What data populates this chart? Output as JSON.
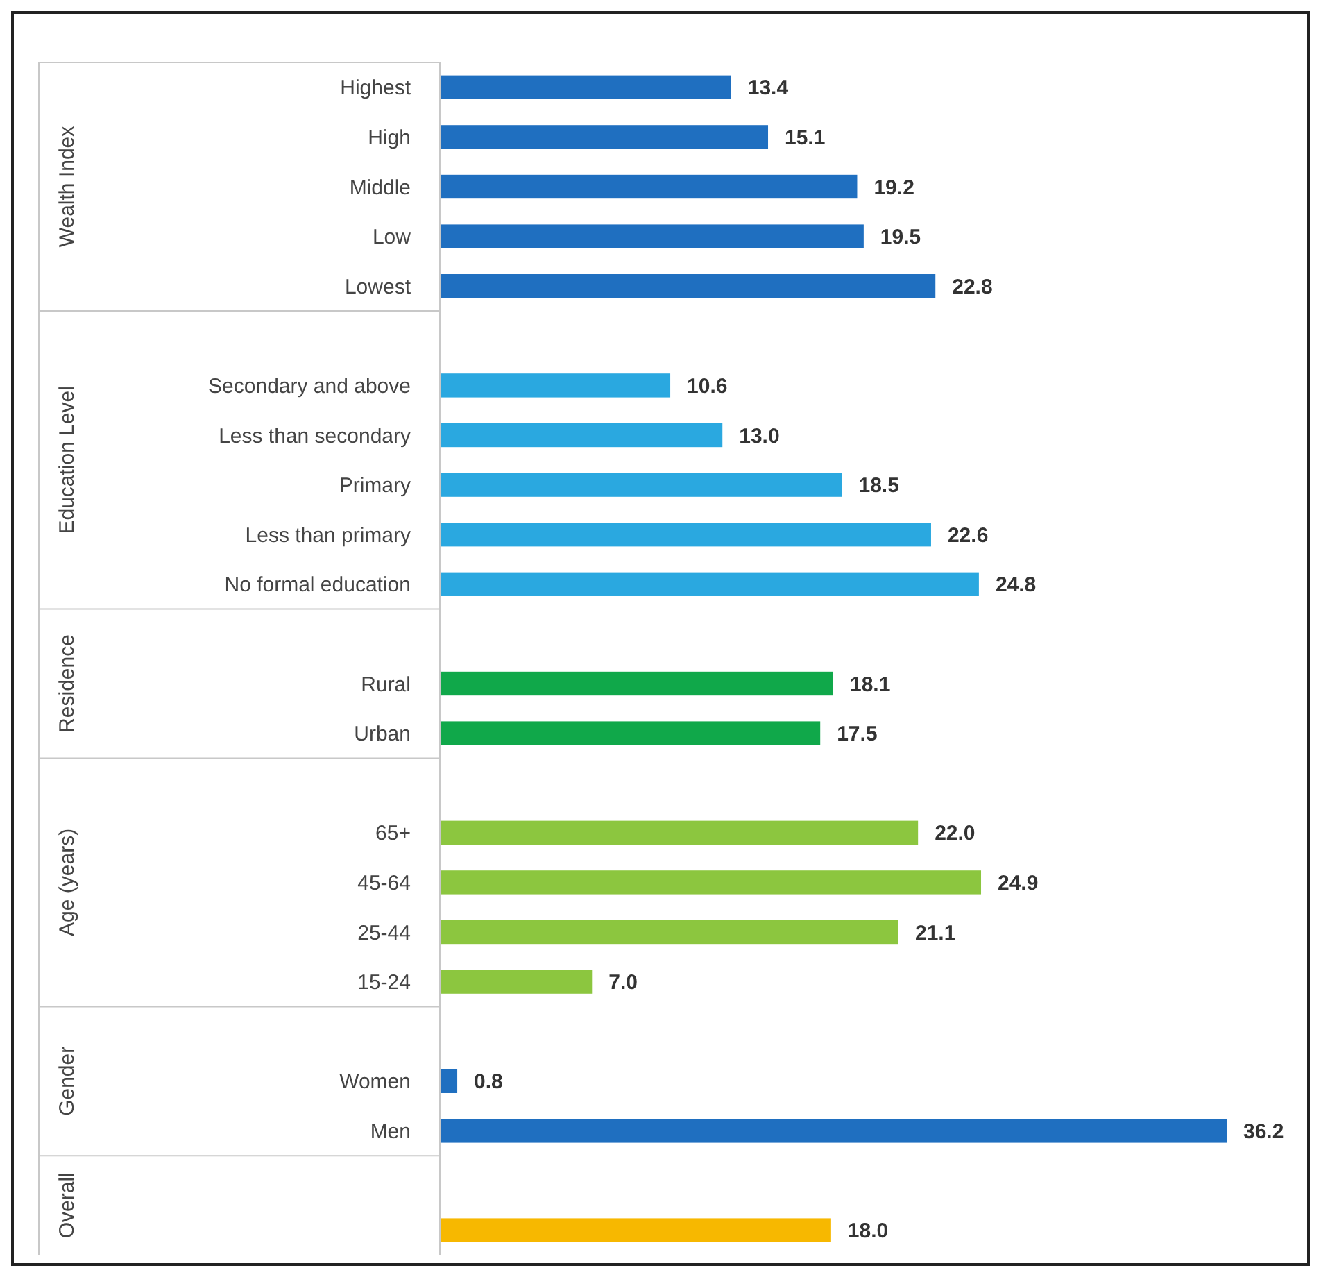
{
  "chart_data": {
    "type": "bar",
    "orientation": "horizontal",
    "categories": [
      "Highest",
      "High",
      "Middle",
      "Low",
      "Lowest",
      null,
      "Secondary and above",
      "Less than secondary",
      "Primary",
      "Less than primary",
      "No formal education",
      null,
      "Rural",
      "Urban",
      null,
      "65+",
      "45-64",
      "25-44",
      "15-24",
      null,
      "Women",
      "Men",
      null,
      null
    ],
    "values": [
      13.4,
      15.1,
      19.2,
      19.5,
      22.8,
      null,
      10.6,
      13.0,
      18.5,
      22.6,
      24.8,
      null,
      18.1,
      17.5,
      null,
      22.0,
      24.9,
      21.1,
      7.0,
      null,
      0.8,
      36.2,
      null,
      18.0
    ],
    "value_labels": [
      "13.4",
      "15.1",
      "19.2",
      "19.5",
      "22.8",
      null,
      "10.6",
      "13.0",
      "18.5",
      "22.6",
      "24.8",
      null,
      "18.1",
      "17.5",
      null,
      "22.0",
      "24.9",
      "21.1",
      "7.0",
      null,
      "0.8",
      "36.2",
      null,
      "18.0"
    ],
    "colors": [
      "#1f6fc0",
      "#1f6fc0",
      "#1f6fc0",
      "#1f6fc0",
      "#1f6fc0",
      null,
      "#2aa8e0",
      "#2aa8e0",
      "#2aa8e0",
      "#2aa8e0",
      "#2aa8e0",
      null,
      "#10a84a",
      "#10a84a",
      null,
      "#8cc63f",
      "#8cc63f",
      "#8cc63f",
      "#8cc63f",
      null,
      "#1f6fc0",
      "#1f6fc0",
      null,
      "#f7b800"
    ],
    "annotations": [
      "Wealth Index",
      "Education Level",
      "Residence",
      "Age (years)",
      "Gender",
      "Overall"
    ]
  }
}
